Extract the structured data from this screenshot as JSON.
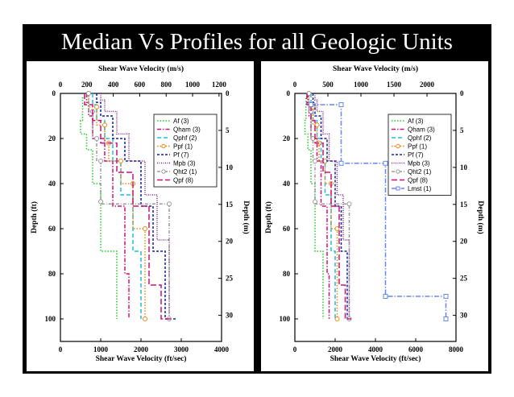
{
  "slide": {
    "title": "Median Vs Profiles for all Geologic Units",
    "background_color": "#000000",
    "title_color": "#ffffff"
  },
  "chart_data": [
    {
      "type": "line",
      "top_axis_label": "Shear Wave Velocity (m/s)",
      "bottom_axis_label": "Shear Wave Velocity (ft/sec)",
      "left_axis_label": "Depth (ft)",
      "right_axis_label": "Depth (m)",
      "bottom_range": [
        0,
        4000
      ],
      "bottom_ticks": [
        "0",
        "1000",
        "2000",
        "3000",
        "4000"
      ],
      "top_range_mps": [
        0,
        1219.2
      ],
      "top_ticks": [
        "0",
        "200",
        "400",
        "600",
        "800",
        "1000",
        "1200"
      ],
      "top_tick_values": [
        0,
        200,
        400,
        600,
        800,
        1000,
        1200
      ],
      "left_range_ft": [
        0,
        110
      ],
      "left_ticks": [
        "0",
        "20",
        "40",
        "60",
        "80",
        "100"
      ],
      "left_tick_values": [
        0,
        20,
        40,
        60,
        80,
        100
      ],
      "right_ticks": [
        "0",
        "5",
        "10",
        "15",
        "20",
        "25",
        "30"
      ],
      "right_tick_values_m": [
        0,
        5,
        10,
        15,
        20,
        25,
        30
      ],
      "legend_position": "top-right",
      "grid": false,
      "series": [
        {
          "name": "Af (3)",
          "color": "#22cc22",
          "dash": "1.5,2",
          "marker": "",
          "depth": [
            0,
            2,
            12,
            18,
            25,
            40,
            70,
            100
          ],
          "velocity": [
            600,
            550,
            500,
            650,
            800,
            1000,
            1400,
            1400
          ]
        },
        {
          "name": "Qham (3)",
          "color": "#cc1177",
          "dash": "5,2,1.5,2",
          "marker": "",
          "depth": [
            0,
            4,
            10,
            20,
            30,
            50,
            80,
            100
          ],
          "velocity": [
            650,
            700,
            800,
            1100,
            1300,
            1600,
            1700,
            1700
          ]
        },
        {
          "name": "Qphf (2)",
          "color": "#22bbdd",
          "dash": "5,3",
          "marker": "",
          "depth": [
            0,
            5,
            12,
            20,
            30,
            45,
            70,
            100
          ],
          "velocity": [
            800,
            900,
            1100,
            1300,
            1500,
            1800,
            2000,
            2000
          ]
        },
        {
          "name": "Ppf (1)",
          "color": "#ee8811",
          "dash": "1.5,2",
          "marker": "circle",
          "depth": [
            0,
            6,
            14,
            22,
            30,
            40,
            60,
            100
          ],
          "velocity": [
            700,
            900,
            1100,
            1200,
            1500,
            1800,
            2100,
            2100
          ]
        },
        {
          "name": "Pf (7)",
          "color": "#112299",
          "dash": "3,2",
          "marker": "",
          "depth": [
            0,
            4,
            10,
            20,
            30,
            50,
            70,
            100
          ],
          "velocity": [
            900,
            1000,
            1300,
            1600,
            2000,
            2300,
            2600,
            2900
          ]
        },
        {
          "name": "Mpb (3)",
          "color": "#882288",
          "dash": "1,1.5",
          "marker": "",
          "depth": [
            0,
            3,
            8,
            18,
            30,
            45,
            65,
            100
          ],
          "velocity": [
            1000,
            1100,
            1400,
            1700,
            2100,
            2400,
            2700,
            2700
          ]
        },
        {
          "name": "Qht2 (1)",
          "color": "#999999",
          "dash": "4,2,1,2",
          "marker": "circle",
          "depth": [
            0,
            8,
            20,
            30,
            48,
            49,
            100
          ],
          "velocity": [
            700,
            800,
            900,
            1000,
            1000,
            2700,
            2700
          ]
        },
        {
          "name": "Qpf (8)",
          "color": "#cc1177",
          "dash": "7,3",
          "marker": "",
          "depth": [
            0,
            5,
            12,
            22,
            35,
            50,
            85,
            100
          ],
          "velocity": [
            600,
            800,
            1000,
            1400,
            1800,
            2200,
            2500,
            2800
          ]
        }
      ]
    },
    {
      "type": "line",
      "top_axis_label": "Shear Wave Velocity (m/s)",
      "bottom_axis_label": "Shear Wave Velocity (ft/sec)",
      "left_axis_label": "Depth (ft)",
      "right_axis_label": "Depth (m)",
      "bottom_range": [
        0,
        8000
      ],
      "bottom_ticks": [
        "0",
        "2000",
        "4000",
        "6000",
        "8000"
      ],
      "top_range_mps": [
        0,
        2438.4
      ],
      "top_ticks": [
        "0",
        "500",
        "1000",
        "1500",
        "2000"
      ],
      "top_tick_values": [
        0,
        500,
        1000,
        1500,
        2000
      ],
      "left_range_ft": [
        0,
        110
      ],
      "left_ticks": [
        "0",
        "20",
        "40",
        "60",
        "80",
        "100"
      ],
      "left_tick_values": [
        0,
        20,
        40,
        60,
        80,
        100
      ],
      "right_ticks": [
        "0",
        "5",
        "10",
        "15",
        "20",
        "25",
        "30"
      ],
      "right_tick_values_m": [
        0,
        5,
        10,
        15,
        20,
        25,
        30
      ],
      "legend_position": "top-right",
      "grid": false,
      "series": [
        {
          "name": "Af (3)",
          "color": "#22cc22",
          "dash": "1.5,2",
          "marker": "",
          "depth": [
            0,
            2,
            12,
            18,
            25,
            40,
            70,
            100
          ],
          "velocity": [
            600,
            550,
            500,
            650,
            800,
            1000,
            1400,
            1400
          ]
        },
        {
          "name": "Qham (3)",
          "color": "#cc1177",
          "dash": "5,2,1.5,2",
          "marker": "",
          "depth": [
            0,
            4,
            10,
            20,
            30,
            50,
            80,
            100
          ],
          "velocity": [
            650,
            700,
            800,
            1100,
            1300,
            1600,
            1700,
            1700
          ]
        },
        {
          "name": "Qphf (2)",
          "color": "#22bbdd",
          "dash": "5,3",
          "marker": "",
          "depth": [
            0,
            5,
            12,
            20,
            30,
            45,
            70,
            100
          ],
          "velocity": [
            800,
            900,
            1100,
            1300,
            1500,
            1800,
            2000,
            2000
          ]
        },
        {
          "name": "Ppf (1)",
          "color": "#ee8811",
          "dash": "1.5,2",
          "marker": "circle",
          "depth": [
            0,
            6,
            14,
            22,
            30,
            40,
            60,
            100
          ],
          "velocity": [
            700,
            900,
            1100,
            1200,
            1500,
            1800,
            2100,
            2100
          ]
        },
        {
          "name": "Pf (7)",
          "color": "#112299",
          "dash": "3,2",
          "marker": "",
          "depth": [
            0,
            4,
            10,
            20,
            30,
            50,
            70,
            100
          ],
          "velocity": [
            900,
            1000,
            1300,
            1600,
            2000,
            2300,
            2600,
            2900
          ]
        },
        {
          "name": "Mpb (3)",
          "color": "#882288",
          "dash": "1,1.5",
          "marker": "",
          "depth": [
            0,
            3,
            8,
            18,
            30,
            45,
            65,
            100
          ],
          "velocity": [
            1000,
            1100,
            1400,
            1700,
            2100,
            2400,
            2700,
            2700
          ]
        },
        {
          "name": "Qht2 (1)",
          "color": "#999999",
          "dash": "4,2,1,2",
          "marker": "circle",
          "depth": [
            0,
            8,
            20,
            30,
            48,
            49,
            100
          ],
          "velocity": [
            700,
            800,
            900,
            1000,
            1000,
            2700,
            2700
          ]
        },
        {
          "name": "Qpf (8)",
          "color": "#cc1177",
          "dash": "7,3",
          "marker": "",
          "depth": [
            0,
            5,
            12,
            22,
            35,
            50,
            85,
            100
          ],
          "velocity": [
            600,
            800,
            1000,
            1400,
            1800,
            2200,
            2500,
            2800
          ]
        },
        {
          "name": "Lmst (1)",
          "color": "#6688ee",
          "dash": "6,2,1.5,2",
          "marker": "square",
          "depth": [
            5,
            5,
            31,
            31,
            90,
            90,
            100
          ],
          "velocity": [
            800,
            2300,
            2300,
            4500,
            4500,
            7500,
            7500
          ]
        }
      ]
    }
  ]
}
